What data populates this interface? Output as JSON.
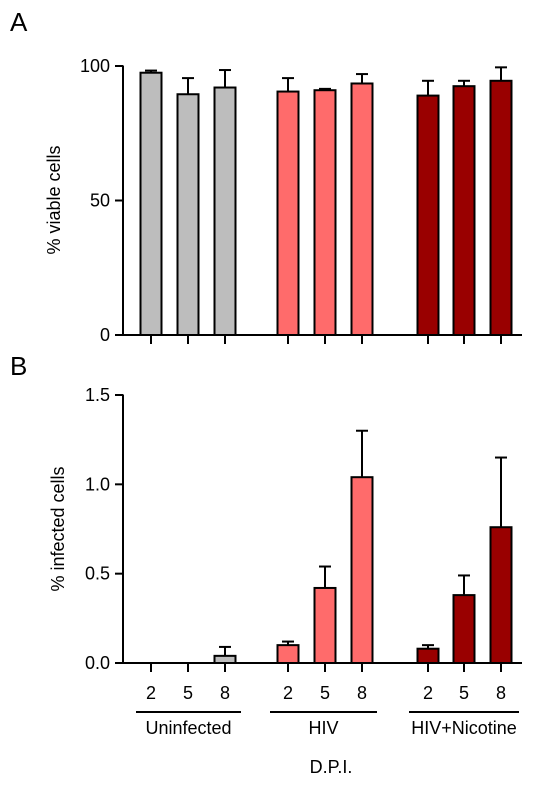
{
  "chart_data": [
    {
      "panel_label": "A",
      "type": "bar",
      "ylabel": "% viable cells",
      "ylim": [
        0,
        100
      ],
      "yticks": [
        "0",
        "50",
        "100"
      ],
      "groups": [
        "Uninfected",
        "HIV",
        "HIV+Nicotine"
      ],
      "categories": [
        "2",
        "5",
        "8"
      ],
      "series": [
        {
          "group": "Uninfected",
          "color": "#bdbdbd",
          "values": [
            97.5,
            89.5,
            92
          ],
          "errors": [
            0.8,
            6,
            6.5
          ]
        },
        {
          "group": "HIV",
          "color": "#ff6b6b",
          "values": [
            90.5,
            91,
            93.5
          ],
          "errors": [
            5,
            0.5,
            3.5
          ]
        },
        {
          "group": "HIV+Nicotine",
          "color": "#990000",
          "values": [
            89,
            92.5,
            94.5
          ],
          "errors": [
            5.5,
            2,
            5
          ]
        }
      ],
      "grid": false
    },
    {
      "panel_label": "B",
      "type": "bar",
      "ylabel": "% infected cells",
      "xlabel": "D.P.I.",
      "ylim": [
        0,
        1.5
      ],
      "yticks": [
        "0.0",
        "0.5",
        "1.0",
        "1.5"
      ],
      "groups": [
        "Uninfected",
        "HIV",
        "HIV+Nicotine"
      ],
      "categories": [
        "2",
        "5",
        "8"
      ],
      "series": [
        {
          "group": "Uninfected",
          "color": "#bdbdbd",
          "values": [
            0,
            0,
            0.04
          ],
          "errors": [
            0,
            0,
            0.05
          ]
        },
        {
          "group": "HIV",
          "color": "#ff6b6b",
          "values": [
            0.1,
            0.42,
            1.04
          ],
          "errors": [
            0.02,
            0.12,
            0.26
          ]
        },
        {
          "group": "HIV+Nicotine",
          "color": "#990000",
          "values": [
            0.08,
            0.38,
            0.76
          ],
          "errors": [
            0.02,
            0.11,
            0.39
          ]
        }
      ],
      "grid": false
    }
  ]
}
